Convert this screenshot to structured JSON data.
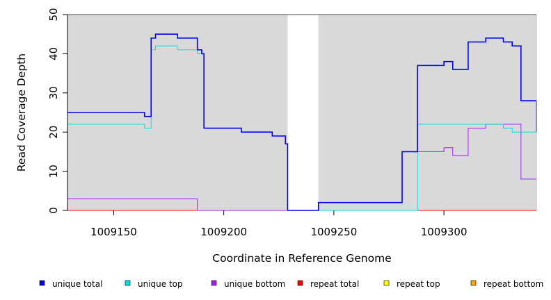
{
  "chart_data": {
    "type": "line",
    "title": "",
    "xlabel": "Coordinate in Reference Genome",
    "ylabel": "Read Coverage Depth",
    "xlim": [
      1009129,
      1009342
    ],
    "ylim": [
      0,
      50
    ],
    "x_ticks": [
      1009150,
      1009200,
      1009250,
      1009300
    ],
    "x_tick_labels": [
      "1009150",
      "1009200",
      "1009250",
      "1009300"
    ],
    "y_ticks": [
      0,
      10,
      20,
      30,
      40,
      50
    ],
    "y_tick_labels": [
      "0",
      "10",
      "20",
      "30",
      "40",
      "50"
    ],
    "background_color": "#d9d9d9",
    "gap_regions": [
      [
        1009229,
        1009243
      ]
    ],
    "legend_position": "bottom",
    "series": [
      {
        "name": "unique total",
        "color": "#0000ee",
        "points": [
          [
            1009129,
            25
          ],
          [
            1009164,
            25
          ],
          [
            1009164,
            24
          ],
          [
            1009167,
            24
          ],
          [
            1009167,
            44
          ],
          [
            1009169,
            44
          ],
          [
            1009169,
            45
          ],
          [
            1009179,
            45
          ],
          [
            1009179,
            44
          ],
          [
            1009188,
            44
          ],
          [
            1009188,
            41
          ],
          [
            1009190,
            41
          ],
          [
            1009190,
            40
          ],
          [
            1009191,
            40
          ],
          [
            1009191,
            21
          ],
          [
            1009208,
            21
          ],
          [
            1009208,
            20
          ],
          [
            1009222,
            20
          ],
          [
            1009222,
            19
          ],
          [
            1009228,
            19
          ],
          [
            1009228,
            17
          ],
          [
            1009229,
            17
          ],
          [
            1009229,
            0
          ],
          [
            1009243,
            0
          ],
          [
            1009243,
            2
          ],
          [
            1009281,
            2
          ],
          [
            1009281,
            15
          ],
          [
            1009288,
            15
          ],
          [
            1009288,
            37
          ],
          [
            1009300,
            37
          ],
          [
            1009300,
            38
          ],
          [
            1009304,
            38
          ],
          [
            1009304,
            36
          ],
          [
            1009311,
            36
          ],
          [
            1009311,
            43
          ],
          [
            1009319,
            43
          ],
          [
            1009319,
            44
          ],
          [
            1009327,
            44
          ],
          [
            1009327,
            43
          ],
          [
            1009331,
            43
          ],
          [
            1009331,
            42
          ],
          [
            1009335,
            42
          ],
          [
            1009335,
            28
          ],
          [
            1009342,
            28
          ],
          [
            1009342,
            20
          ]
        ]
      },
      {
        "name": "unique top",
        "color": "#00e0e0",
        "points": [
          [
            1009129,
            22
          ],
          [
            1009164,
            22
          ],
          [
            1009164,
            21
          ],
          [
            1009167,
            21
          ],
          [
            1009167,
            41
          ],
          [
            1009169,
            41
          ],
          [
            1009169,
            42
          ],
          [
            1009179,
            42
          ],
          [
            1009179,
            41
          ],
          [
            1009188,
            41
          ],
          [
            1009188,
            40
          ],
          [
            1009190,
            40
          ],
          [
            1009191,
            40
          ],
          [
            1009191,
            21
          ],
          [
            1009208,
            21
          ],
          [
            1009208,
            20
          ],
          [
            1009222,
            20
          ],
          [
            1009222,
            19
          ],
          [
            1009228,
            19
          ],
          [
            1009228,
            17
          ],
          [
            1009229,
            17
          ],
          [
            1009229,
            0
          ],
          [
            1009288,
            0
          ],
          [
            1009288,
            22
          ],
          [
            1009327,
            22
          ],
          [
            1009327,
            21
          ],
          [
            1009331,
            21
          ],
          [
            1009331,
            20
          ],
          [
            1009342,
            20
          ],
          [
            1009342,
            0
          ]
        ]
      },
      {
        "name": "unique bottom",
        "color": "#a020f0",
        "points": [
          [
            1009129,
            3
          ],
          [
            1009188,
            3
          ],
          [
            1009188,
            0
          ],
          [
            1009243,
            0
          ],
          [
            1009243,
            2
          ],
          [
            1009281,
            2
          ],
          [
            1009281,
            15
          ],
          [
            1009300,
            15
          ],
          [
            1009300,
            16
          ],
          [
            1009304,
            16
          ],
          [
            1009304,
            14
          ],
          [
            1009311,
            14
          ],
          [
            1009311,
            21
          ],
          [
            1009319,
            21
          ],
          [
            1009319,
            22
          ],
          [
            1009335,
            22
          ],
          [
            1009335,
            8
          ],
          [
            1009342,
            8
          ],
          [
            1009342,
            0
          ]
        ]
      },
      {
        "name": "repeat total",
        "color": "#ff0000",
        "points": [
          [
            1009129,
            0
          ],
          [
            1009342,
            0
          ]
        ]
      },
      {
        "name": "repeat top",
        "color": "#ffff00",
        "points": [
          [
            1009129,
            0
          ],
          [
            1009342,
            0
          ]
        ]
      },
      {
        "name": "repeat bottom",
        "color": "#ffa500",
        "points": [
          [
            1009129,
            0
          ],
          [
            1009342,
            0
          ]
        ]
      }
    ]
  }
}
